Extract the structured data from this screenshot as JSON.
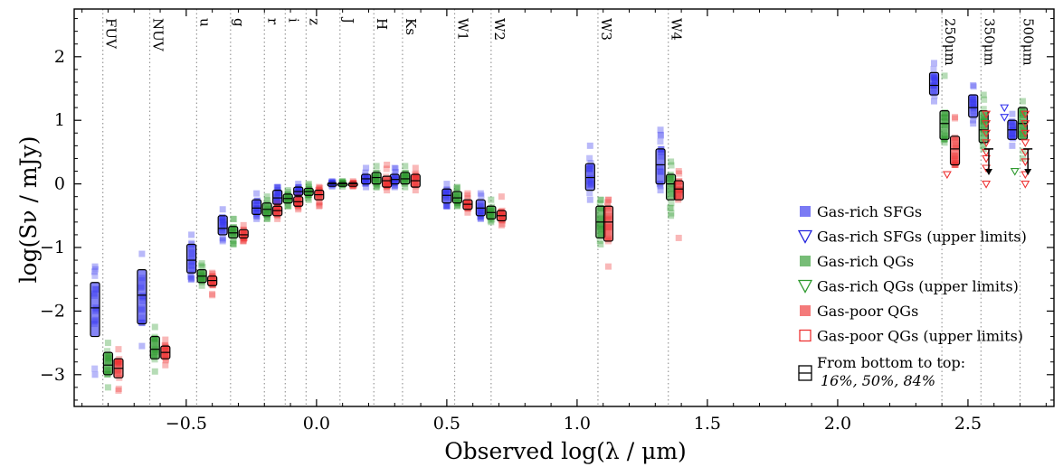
{
  "chart_data": {
    "type": "scatter",
    "xlabel": "Observed log(λ / μm)",
    "ylabel": "log(Sν / mJy)",
    "xlim": [
      -0.93,
      2.83
    ],
    "ylim": [
      -3.5,
      2.75
    ],
    "xticks": [
      -0.5,
      0.0,
      0.5,
      1.0,
      1.5,
      2.0,
      2.5
    ],
    "xtick_labels": [
      "−0.5",
      "0.0",
      "0.5",
      "1.0",
      "1.5",
      "2.0",
      "2.5"
    ],
    "yticks": [
      -3,
      -2,
      -1,
      0,
      1,
      2
    ],
    "ytick_labels": [
      "−3",
      "−2",
      "−1",
      "0",
      "1",
      "2"
    ],
    "bands": [
      {
        "name": "FUV",
        "x": -0.82
      },
      {
        "name": "NUV",
        "x": -0.64
      },
      {
        "name": "u",
        "x": -0.46
      },
      {
        "name": "g",
        "x": -0.33
      },
      {
        "name": "r",
        "x": -0.2
      },
      {
        "name": "i",
        "x": -0.12
      },
      {
        "name": "z",
        "x": -0.04
      },
      {
        "name": "J",
        "x": 0.09
      },
      {
        "name": "H",
        "x": 0.22
      },
      {
        "name": "Ks",
        "x": 0.33
      },
      {
        "name": "W1",
        "x": 0.53
      },
      {
        "name": "W2",
        "x": 0.67
      },
      {
        "name": "W3",
        "x": 1.08
      },
      {
        "name": "W4",
        "x": 1.35
      },
      {
        "name": "250μm",
        "x": 2.4
      },
      {
        "name": "350μm",
        "x": 2.55
      },
      {
        "name": "500μm",
        "x": 2.7
      }
    ],
    "series": [
      {
        "name": "Gas-rich SFGs",
        "color": "#3333ee",
        "points": [
          {
            "x": -0.85,
            "p16": -2.4,
            "p50": -1.95,
            "p84": -1.55,
            "min": -3.0,
            "max": -1.3
          },
          {
            "x": -0.67,
            "p16": -2.2,
            "p50": -1.75,
            "p84": -1.35,
            "min": -2.55,
            "max": -1.1
          },
          {
            "x": -0.48,
            "p16": -1.4,
            "p50": -1.2,
            "p84": -0.95,
            "min": -1.5,
            "max": -0.8
          },
          {
            "x": -0.36,
            "p16": -0.8,
            "p50": -0.7,
            "p84": -0.5,
            "min": -0.9,
            "max": -0.4
          },
          {
            "x": -0.23,
            "p16": -0.48,
            "p50": -0.38,
            "p84": -0.25,
            "min": -0.55,
            "max": -0.15
          },
          {
            "x": -0.15,
            "p16": -0.32,
            "p50": -0.22,
            "p84": -0.1,
            "min": -0.4,
            "max": -0.05
          },
          {
            "x": -0.07,
            "p16": -0.18,
            "p50": -0.12,
            "p84": -0.05,
            "min": -0.25,
            "max": 0.0
          },
          {
            "x": 0.06,
            "p16": -0.02,
            "p50": 0.0,
            "p84": 0.02,
            "min": -0.04,
            "max": 0.04
          },
          {
            "x": 0.19,
            "p16": 0.0,
            "p50": 0.08,
            "p84": 0.15,
            "min": -0.05,
            "max": 0.25
          },
          {
            "x": 0.3,
            "p16": 0.0,
            "p50": 0.07,
            "p84": 0.15,
            "min": -0.05,
            "max": 0.25
          },
          {
            "x": 0.5,
            "p16": -0.3,
            "p50": -0.18,
            "p84": -0.08,
            "min": -0.35,
            "max": 0.0
          },
          {
            "x": 0.63,
            "p16": -0.5,
            "p50": -0.38,
            "p84": -0.25,
            "min": -0.55,
            "max": -0.15
          },
          {
            "x": 1.05,
            "p16": -0.1,
            "p50": 0.1,
            "p84": 0.32,
            "min": -0.25,
            "max": 0.6
          },
          {
            "x": 1.32,
            "p16": 0.0,
            "p50": 0.3,
            "p84": 0.55,
            "min": -0.1,
            "max": 0.85
          },
          {
            "x": 2.37,
            "p16": 1.4,
            "p50": 1.55,
            "p84": 1.75,
            "min": 1.3,
            "max": 1.9
          },
          {
            "x": 2.52,
            "p16": 1.05,
            "p50": 1.2,
            "p84": 1.4,
            "min": 0.95,
            "max": 1.55
          },
          {
            "x": 2.67,
            "p16": 0.7,
            "p50": 0.85,
            "p84": 1.0,
            "min": 0.6,
            "max": 1.1
          }
        ]
      },
      {
        "name": "Gas-rich QGs",
        "color": "#2e9a2e",
        "points": [
          {
            "x": -0.8,
            "p16": -3.0,
            "p50": -2.85,
            "p84": -2.65,
            "min": -3.2,
            "max": -2.5
          },
          {
            "x": -0.62,
            "p16": -2.75,
            "p50": -2.6,
            "p84": -2.4,
            "min": -2.95,
            "max": -2.25
          },
          {
            "x": -0.44,
            "p16": -1.55,
            "p50": -1.45,
            "p84": -1.35,
            "min": -1.6,
            "max": -1.25
          },
          {
            "x": -0.32,
            "p16": -0.85,
            "p50": -0.77,
            "p84": -0.67,
            "min": -0.95,
            "max": -0.55
          },
          {
            "x": -0.19,
            "p16": -0.5,
            "p50": -0.4,
            "p84": -0.3,
            "min": -0.55,
            "max": -0.2
          },
          {
            "x": -0.11,
            "p16": -0.3,
            "p50": -0.23,
            "p84": -0.16,
            "min": -0.35,
            "max": -0.1
          },
          {
            "x": -0.03,
            "p16": -0.18,
            "p50": -0.12,
            "p84": -0.07,
            "min": -0.25,
            "max": 0.0
          },
          {
            "x": 0.1,
            "p16": -0.02,
            "p50": 0.0,
            "p84": 0.02,
            "min": -0.04,
            "max": 0.04
          },
          {
            "x": 0.23,
            "p16": 0.0,
            "p50": 0.1,
            "p84": 0.18,
            "min": -0.05,
            "max": 0.28
          },
          {
            "x": 0.34,
            "p16": 0.0,
            "p50": 0.08,
            "p84": 0.18,
            "min": -0.05,
            "max": 0.28
          },
          {
            "x": 0.54,
            "p16": -0.3,
            "p50": -0.22,
            "p84": -0.12,
            "min": -0.35,
            "max": -0.05
          },
          {
            "x": 0.67,
            "p16": -0.55,
            "p50": -0.45,
            "p84": -0.35,
            "min": -0.6,
            "max": -0.25
          },
          {
            "x": 1.09,
            "p16": -0.85,
            "p50": -0.6,
            "p84": -0.35,
            "min": -0.95,
            "max": -0.25
          },
          {
            "x": 1.36,
            "p16": -0.25,
            "p50": 0.0,
            "p84": 0.15,
            "min": -0.5,
            "max": 0.35
          },
          {
            "x": 2.41,
            "p16": 0.7,
            "p50": 0.95,
            "p84": 1.15,
            "min": 0.65,
            "max": 1.7
          },
          {
            "x": 2.56,
            "p16": 0.65,
            "p50": 0.85,
            "p84": 1.15,
            "min": 0.55,
            "max": 1.4
          },
          {
            "x": 2.71,
            "p16": 0.7,
            "p50": 0.95,
            "p84": 1.2,
            "min": 0.4,
            "max": 1.3
          }
        ]
      },
      {
        "name": "Gas-poor QGs",
        "color": "#ee3333",
        "points": [
          {
            "x": -0.76,
            "p16": -3.05,
            "p50": -2.9,
            "p84": -2.75,
            "min": -3.25,
            "max": -2.6
          },
          {
            "x": -0.58,
            "p16": -2.75,
            "p50": -2.65,
            "p84": -2.55,
            "min": -2.85,
            "max": -2.45
          },
          {
            "x": -0.4,
            "p16": -1.6,
            "p50": -1.52,
            "p84": -1.45,
            "min": -1.75,
            "max": -1.4
          },
          {
            "x": -0.28,
            "p16": -0.85,
            "p50": -0.8,
            "p84": -0.72,
            "min": -0.9,
            "max": -0.65
          },
          {
            "x": -0.15,
            "p16": -0.5,
            "p50": -0.42,
            "p84": -0.35,
            "min": -0.55,
            "max": -0.3
          },
          {
            "x": -0.07,
            "p16": -0.35,
            "p50": -0.28,
            "p84": -0.2,
            "min": -0.4,
            "max": -0.15
          },
          {
            "x": 0.01,
            "p16": -0.25,
            "p50": -0.17,
            "p84": -0.1,
            "min": -0.35,
            "max": -0.05
          },
          {
            "x": 0.14,
            "p16": -0.02,
            "p50": 0.0,
            "p84": 0.02,
            "min": -0.04,
            "max": 0.04
          },
          {
            "x": 0.27,
            "p16": -0.05,
            "p50": 0.05,
            "p84": 0.12,
            "min": -0.1,
            "max": 0.3
          },
          {
            "x": 0.38,
            "p16": -0.05,
            "p50": 0.05,
            "p84": 0.15,
            "min": -0.1,
            "max": 0.25
          },
          {
            "x": 0.58,
            "p16": -0.4,
            "p50": -0.32,
            "p84": -0.25,
            "min": -0.45,
            "max": -0.15
          },
          {
            "x": 0.71,
            "p16": -0.58,
            "p50": -0.5,
            "p84": -0.42,
            "min": -0.65,
            "max": -0.2
          },
          {
            "x": 1.12,
            "p16": -0.9,
            "p50": -0.6,
            "p84": -0.35,
            "min": -1.3,
            "max": -0.25
          },
          {
            "x": 1.39,
            "p16": -0.25,
            "p50": -0.08,
            "p84": 0.05,
            "min": -0.85,
            "max": 0.2
          },
          {
            "x": 2.45,
            "p16": 0.3,
            "p50": 0.55,
            "p84": 0.75,
            "min": 0.3,
            "max": 1.05
          }
        ]
      }
    ],
    "upper_limits": [
      {
        "series": "Gas-rich SFGs",
        "x": 2.64,
        "y": [
          1.2,
          1.05
        ]
      },
      {
        "series": "Gas-rich QGs",
        "x": 2.68,
        "y": [
          0.2
        ]
      },
      {
        "series": "Gas-poor QGs",
        "x": 2.42,
        "y": [
          0.15
        ]
      },
      {
        "series": "Gas-poor QGs",
        "x": 2.57,
        "y": [
          1.1,
          0.95,
          0.8,
          0.65,
          0.5,
          0.4,
          0.25,
          0.0
        ]
      },
      {
        "series": "Gas-poor QGs",
        "x": 2.72,
        "y": [
          1.1,
          0.95,
          0.8,
          0.65,
          0.5,
          0.35,
          0.15,
          0.0
        ]
      }
    ],
    "median_arrows": [
      {
        "x": 2.58,
        "from": 0.55,
        "to": 0.15
      },
      {
        "x": 2.73,
        "from": 0.55,
        "to": 0.15
      }
    ],
    "legend": {
      "position": "lower-right",
      "entries": [
        {
          "label": "Gas-rich SFGs",
          "marker": "filled-square",
          "color": "#3333ee"
        },
        {
          "label": "Gas-rich SFGs (upper limits)",
          "marker": "open-triangle",
          "color": "#2222dd"
        },
        {
          "label": "Gas-rich QGs",
          "marker": "filled-square",
          "color": "#2e9a2e"
        },
        {
          "label": "Gas-rich QGs (upper limits)",
          "marker": "open-triangle",
          "color": "#2e9a2e"
        },
        {
          "label": "Gas-poor QGs",
          "marker": "filled-square",
          "color": "#ee3333"
        },
        {
          "label": "Gas-poor QGs (upper limits)",
          "marker": "open-square",
          "color": "#ee3333"
        }
      ],
      "box_note_line1": "From bottom to top:",
      "box_note_line2": "16%, 50%, 84%"
    }
  }
}
